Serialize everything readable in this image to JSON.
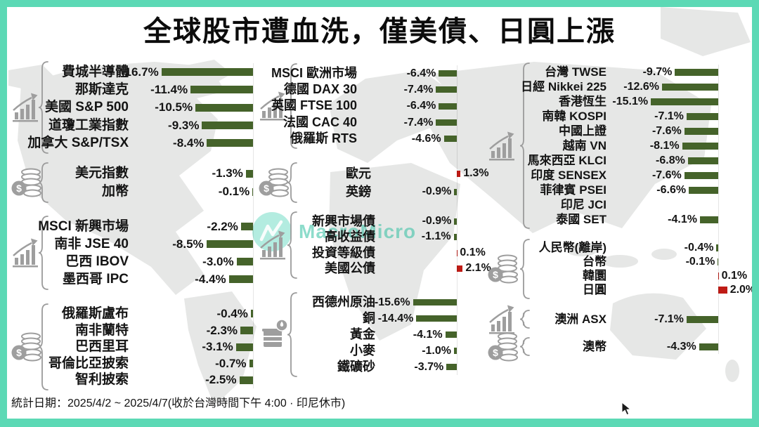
{
  "title": "全球股市遭血洗，僅美債、日圓上漲",
  "footer": {
    "stats_note": "統計日期：2025/4/2 ~ 2025/4/7(收於台灣時間下午 4:00 · 印尼休市)"
  },
  "watermark": {
    "brand": "MacroMicro"
  },
  "colors": {
    "frame_teal": "#5cd9b5",
    "bar_negative_green": "#45632a",
    "bar_positive_red": "#bf1b15",
    "map_gray": "#e6e7e6",
    "icon_gray": "#9e9e9e",
    "watermark_teal": "#2fbfa0"
  },
  "chart_data": {
    "type": "bar",
    "orientation": "horizontal",
    "value_unit": "percent (period change)",
    "title": "全球股市遭血洗，僅美債、日圓上漲",
    "legend_position": "none",
    "grid": false,
    "color_convention": {
      "negative": "green #45632a",
      "positive": "red #bf1b15"
    },
    "columns": [
      {
        "groups": [
          {
            "icon": "trend-chart",
            "items": [
              {
                "label": "費城半導體",
                "value": -16.7,
                "display": "-16.7%"
              },
              {
                "label": "那斯達克",
                "value": -11.4,
                "display": "-11.4%"
              },
              {
                "label": "美國 S&P 500",
                "value": -10.5,
                "display": "-10.5%"
              },
              {
                "label": "道瓊工業指數",
                "value": -9.3,
                "display": "-9.3%"
              },
              {
                "label": "加拿大 S&P/TSX",
                "value": -8.4,
                "display": "-8.4%"
              }
            ]
          },
          {
            "icon": "coins",
            "items": [
              {
                "label": "美元指數",
                "value": -1.3,
                "display": "-1.3%"
              },
              {
                "label": "加幣",
                "value": -0.1,
                "display": "-0.1%"
              }
            ]
          },
          {
            "icon": "trend-chart",
            "items": [
              {
                "label": "MSCI 新興市場",
                "value": -2.2,
                "display": "-2.2%"
              },
              {
                "label": "南非 JSE 40",
                "value": -8.5,
                "display": "-8.5%"
              },
              {
                "label": "巴西 IBOV",
                "value": -3.0,
                "display": "-3.0%"
              },
              {
                "label": "墨西哥 IPC",
                "value": -4.4,
                "display": "-4.4%"
              }
            ]
          },
          {
            "icon": "coins",
            "items": [
              {
                "label": "俄羅斯盧布",
                "value": -0.4,
                "display": "-0.4%"
              },
              {
                "label": "南非蘭特",
                "value": -2.3,
                "display": "-2.3%"
              },
              {
                "label": "巴西里耳",
                "value": -3.1,
                "display": "-3.1%"
              },
              {
                "label": "哥倫比亞披索",
                "value": -0.7,
                "display": "-0.7%"
              },
              {
                "label": "智利披索",
                "value": -2.5,
                "display": "-2.5%"
              }
            ]
          }
        ]
      },
      {
        "groups": [
          {
            "icon": "trend-chart",
            "items": [
              {
                "label": "MSCI 歐洲市場",
                "value": -6.4,
                "display": "-6.4%"
              },
              {
                "label": "德國 DAX 30",
                "value": -7.4,
                "display": "-7.4%"
              },
              {
                "label": "英國 FTSE 100",
                "value": -6.4,
                "display": "-6.4%"
              },
              {
                "label": "法國 CAC 40",
                "value": -7.4,
                "display": "-7.4%"
              },
              {
                "label": "俄羅斯 RTS",
                "value": -4.6,
                "display": "-4.6%"
              }
            ]
          },
          {
            "icon": "coins",
            "items": [
              {
                "label": "歐元",
                "value": 1.3,
                "display": "1.3%"
              },
              {
                "label": "英鎊",
                "value": -0.9,
                "display": "-0.9%"
              }
            ]
          },
          {
            "icon": "trend-chart",
            "items": [
              {
                "label": "新興市場債",
                "value": -0.9,
                "display": "-0.9%"
              },
              {
                "label": "高收益債",
                "value": -1.1,
                "display": "-1.1%"
              },
              {
                "label": "投資等級債",
                "value": 0.1,
                "display": "0.1%"
              },
              {
                "label": "美國公債",
                "value": 2.1,
                "display": "2.1%"
              }
            ]
          },
          {
            "icon": "oil-barrel",
            "items": [
              {
                "label": "西德州原油",
                "value": -15.6,
                "display": "-15.6%"
              },
              {
                "label": "銅",
                "value": -14.4,
                "display": "-14.4%"
              },
              {
                "label": "黃金",
                "value": -4.1,
                "display": "-4.1%"
              },
              {
                "label": "小麥",
                "value": -1.0,
                "display": "-1.0%"
              },
              {
                "label": "鐵礦砂",
                "value": -3.7,
                "display": "-3.7%"
              }
            ]
          }
        ]
      },
      {
        "groups": [
          {
            "icon": "trend-chart",
            "items": [
              {
                "label": "台灣 TWSE",
                "value": -9.7,
                "display": "-9.7%"
              },
              {
                "label": "日經 Nikkei 225",
                "value": -12.6,
                "display": "-12.6%"
              },
              {
                "label": "香港恆生",
                "value": -15.1,
                "display": "-15.1%"
              },
              {
                "label": "南韓 KOSPI",
                "value": -7.1,
                "display": "-7.1%"
              },
              {
                "label": "中國上證",
                "value": -7.6,
                "display": "-7.6%"
              },
              {
                "label": "越南 VN",
                "value": -8.1,
                "display": "-8.1%"
              },
              {
                "label": "馬來西亞 KLCI",
                "value": -6.8,
                "display": "-6.8%"
              },
              {
                "label": "印度 SENSEX",
                "value": -7.6,
                "display": "-7.6%"
              },
              {
                "label": "菲律賓 PSEI",
                "value": -6.6,
                "display": "-6.6%"
              },
              {
                "label": "印尼 JCI",
                "value": null,
                "display": ""
              },
              {
                "label": "泰國 SET",
                "value": -4.1,
                "display": "-4.1%"
              }
            ]
          },
          {
            "icon": "coins",
            "items": [
              {
                "label": "人民幣(離岸)",
                "value": -0.4,
                "display": "-0.4%"
              },
              {
                "label": "台幣",
                "value": -0.1,
                "display": "-0.1%"
              },
              {
                "label": "韓圜",
                "value": 0.1,
                "display": "0.1%"
              },
              {
                "label": "日圓",
                "value": 2.0,
                "display": "2.0%"
              }
            ]
          },
          {
            "icon": "trend-chart",
            "items": [
              {
                "label": "澳洲 ASX",
                "value": -7.1,
                "display": "-7.1%"
              }
            ]
          },
          {
            "icon": "coins",
            "items": [
              {
                "label": "澳幣",
                "value": -4.3,
                "display": "-4.3%"
              }
            ]
          }
        ]
      }
    ]
  }
}
